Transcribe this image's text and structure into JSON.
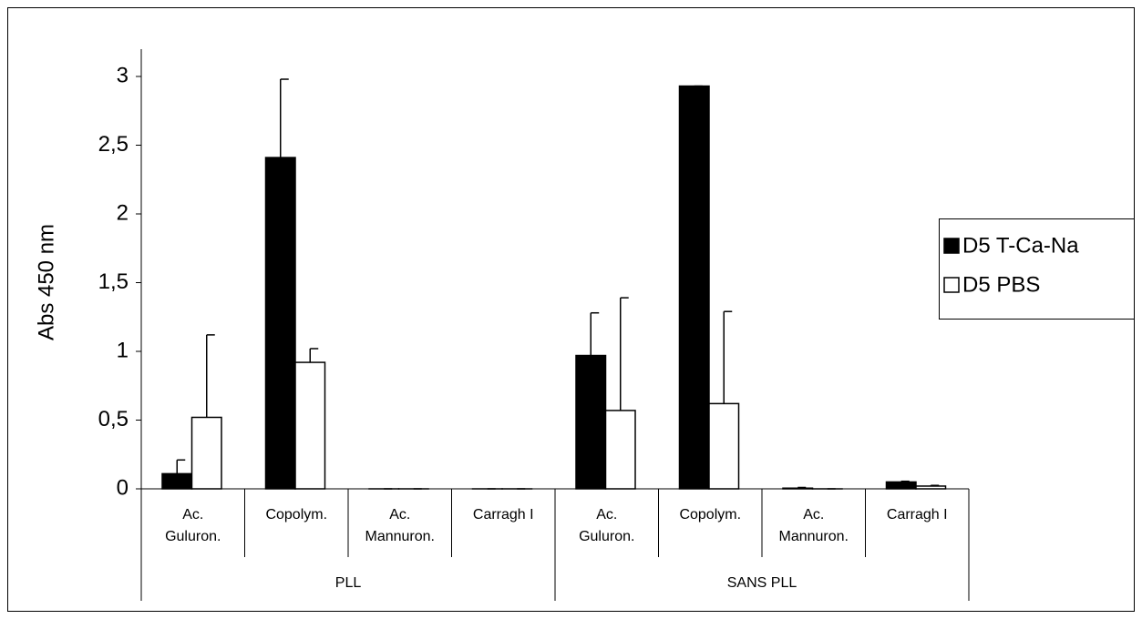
{
  "chart_data": {
    "type": "bar",
    "y_label": "Abs 450 nm",
    "categories": [
      "Ac.\nGuluron.",
      "Copolym.",
      "Ac.\nMannuron.",
      "Carragh I",
      "Ac.\nGuluron.",
      "Copolym.",
      "Ac.\nMannuron.",
      "Carragh I"
    ],
    "groups": [
      {
        "name": "PLL",
        "span": 4
      },
      {
        "name": "SANS PLL",
        "span": 4
      }
    ],
    "series": [
      {
        "name": "D5 T-Ca-Na",
        "color": "#000000",
        "values": [
          0.11,
          2.41,
          0,
          0,
          0.97,
          2.93,
          0.005,
          0.05
        ],
        "errors": [
          0.1,
          0.57,
          0,
          0,
          0.31,
          0,
          0.005,
          0.005
        ]
      },
      {
        "name": "D5 PBS",
        "color": "#ffffff",
        "values": [
          0.52,
          0.92,
          0,
          0,
          0.57,
          0.62,
          0,
          0.02
        ],
        "errors": [
          0.6,
          0.1,
          0,
          0,
          0.82,
          0.67,
          0,
          0.005
        ]
      }
    ],
    "ylim": [
      0,
      3
    ],
    "yticks": [
      0,
      {
        "value": 0.5,
        "label": "0,5"
      },
      1,
      {
        "value": 1.5,
        "label": "1,5"
      },
      2,
      {
        "value": 2.5,
        "label": "2,5"
      },
      3
    ],
    "legend": "right"
  }
}
